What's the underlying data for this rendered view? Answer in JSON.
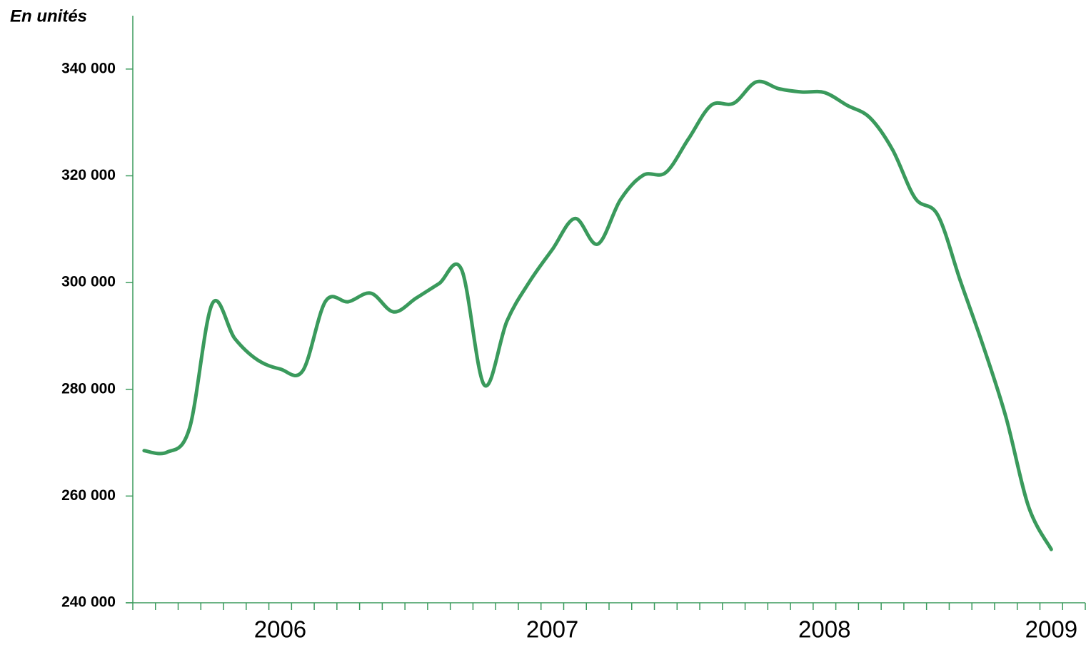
{
  "chart_data": {
    "type": "line",
    "y_label": "En unités",
    "categories": [
      null,
      null,
      null,
      null,
      null,
      null,
      "2006",
      null,
      null,
      null,
      null,
      null,
      null,
      null,
      null,
      null,
      null,
      null,
      "2007",
      null,
      null,
      null,
      null,
      null,
      null,
      null,
      null,
      null,
      null,
      null,
      "2008",
      null,
      null,
      null,
      null,
      null,
      null,
      null,
      null,
      null,
      "2009",
      null
    ],
    "series": [
      {
        "name": null,
        "color": "#3a9a5c",
        "values": [
          268500,
          268200,
          272700,
          296000,
          289500,
          285500,
          283800,
          283500,
          296500,
          296400,
          298000,
          294500,
          297100,
          299800,
          302400,
          280800,
          292800,
          300200,
          306200,
          312000,
          307200,
          315500,
          320100,
          320600,
          326900,
          333200,
          333600,
          337600,
          336300,
          335700,
          335600,
          333200,
          330900,
          324900,
          315800,
          312600,
          300200,
          288100,
          274800,
          258000,
          250000,
          null
        ]
      }
    ],
    "ylim": [
      240000,
      350000
    ],
    "yticks": [
      {
        "value": 240000,
        "label": "240 000"
      },
      {
        "value": 260000,
        "label": "260 000"
      },
      {
        "value": 280000,
        "label": "280 000"
      },
      {
        "value": 300000,
        "label": "300 000"
      },
      {
        "value": 320000,
        "label": "320 000"
      },
      {
        "value": 340000,
        "label": "340 000"
      }
    ],
    "axis_color": "#3a9a5c",
    "grid": false
  }
}
